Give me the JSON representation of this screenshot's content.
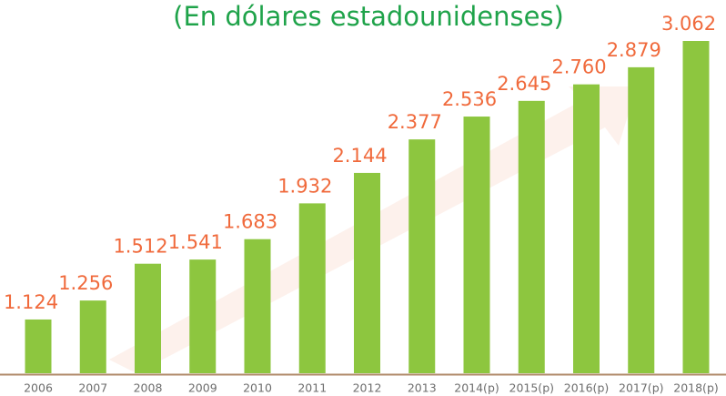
{
  "chart_data": {
    "type": "bar",
    "title": "(En dólares estadounidenses)",
    "categories": [
      "2006",
      "2007",
      "2008",
      "2009",
      "2010",
      "2011",
      "2012",
      "2013",
      "2014(p)",
      "2015(p)",
      "2016(p)",
      "2017(p)",
      "2018(p)"
    ],
    "values": [
      1124,
      1256,
      1512,
      1541,
      1683,
      1932,
      2144,
      2377,
      2536,
      2645,
      2760,
      2879,
      3062
    ],
    "value_labels": [
      "1.124",
      "1.256",
      "1.512",
      "1.541",
      "1.683",
      "1.932",
      "2.144",
      "2.377",
      "2.536",
      "2.645",
      "2.760",
      "2.879",
      "3.062"
    ],
    "color": "#8dc63f",
    "ylim": [
      750,
      3100
    ]
  }
}
